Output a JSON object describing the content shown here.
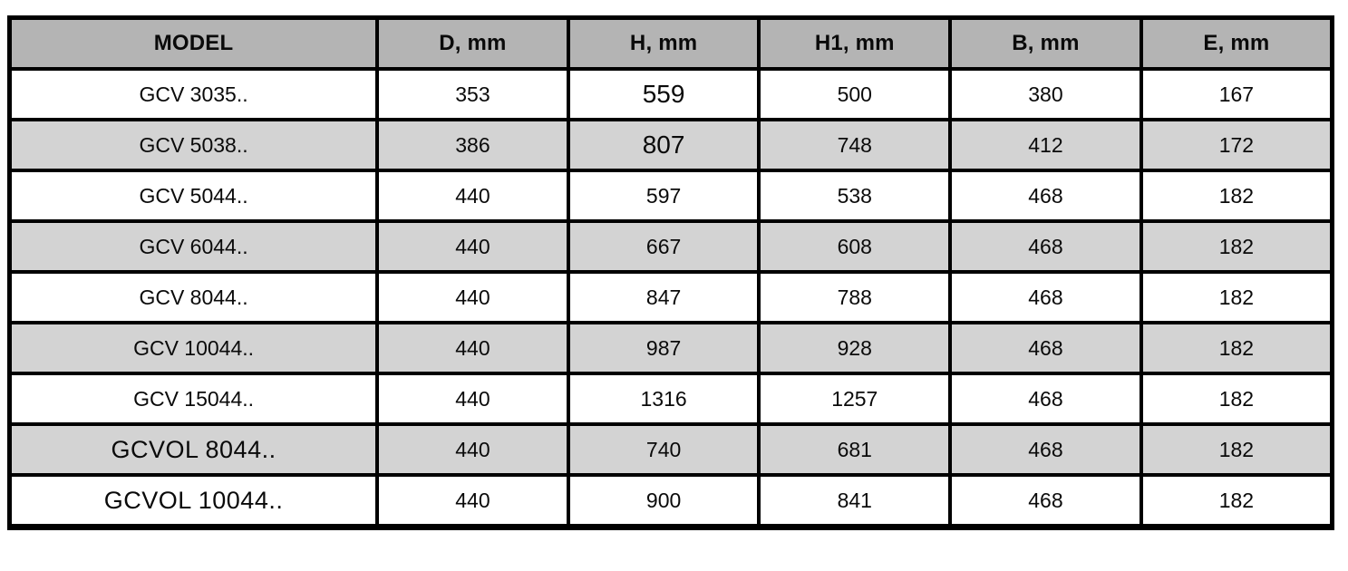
{
  "table": {
    "headers": [
      "MODEL",
      "D, mm",
      "H, mm",
      "H1, mm",
      "B, mm",
      "E, mm"
    ],
    "rows": [
      [
        "GCV 3035..",
        "353",
        "559",
        "500",
        "380",
        "167"
      ],
      [
        "GCV 5038..",
        "386",
        "807",
        "748",
        "412",
        "172"
      ],
      [
        "GCV 5044..",
        "440",
        "597",
        "538",
        "468",
        "182"
      ],
      [
        "GCV 6044..",
        "440",
        "667",
        "608",
        "468",
        "182"
      ],
      [
        "GCV 8044..",
        "440",
        "847",
        "788",
        "468",
        "182"
      ],
      [
        "GCV 10044..",
        "440",
        "987",
        "928",
        "468",
        "182"
      ],
      [
        "GCV 15044..",
        "440",
        "1316",
        "1257",
        "468",
        "182"
      ],
      [
        "GCVOL 8044..",
        "440",
        "740",
        "681",
        "468",
        "182"
      ],
      [
        "GCVOL 10044..",
        "440",
        "900",
        "841",
        "468",
        "182"
      ]
    ]
  },
  "colors": {
    "header_bg": "#b4b4b4",
    "alt_row_bg": "#d3d3d3",
    "row_bg": "#ffffff",
    "border": "#000000"
  }
}
